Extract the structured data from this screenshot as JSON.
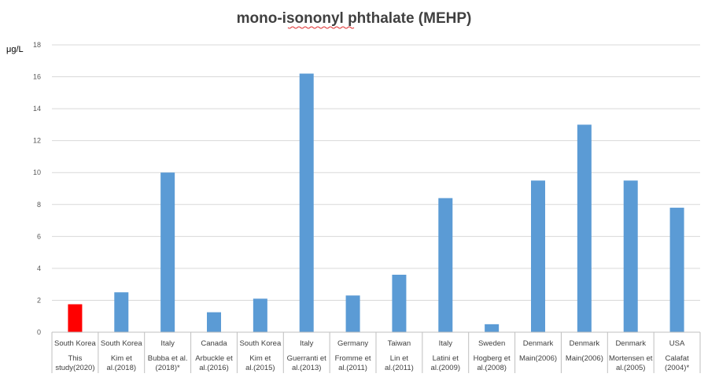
{
  "chart_data": {
    "type": "bar",
    "title": "mono-isononyl phthalate (MEHP)",
    "ylabel": "μg/L",
    "xlabel": "",
    "ylim": [
      0,
      18
    ],
    "yticks": [
      0,
      2,
      4,
      6,
      8,
      10,
      12,
      14,
      16,
      18
    ],
    "grid": true,
    "legend": "none",
    "categories": [
      {
        "country": "South Korea",
        "study": [
          "This",
          "study(2020)"
        ]
      },
      {
        "country": "South Korea",
        "study": [
          "Kim et",
          "al.(2018)"
        ]
      },
      {
        "country": "Italy",
        "study": [
          "Bubba et al.",
          "(2018)*"
        ]
      },
      {
        "country": "Canada",
        "study": [
          "Arbuckle et",
          "al.(2016)"
        ]
      },
      {
        "country": "South Korea",
        "study": [
          "Kim et",
          "al.(2015)"
        ]
      },
      {
        "country": "Italy",
        "study": [
          "Guerranti et",
          "al.(2013)"
        ]
      },
      {
        "country": "Germany",
        "study": [
          "Fromme et",
          "al.(2011)"
        ]
      },
      {
        "country": "Taiwan",
        "study": [
          "Lin et",
          "al.(2011)"
        ]
      },
      {
        "country": "Italy",
        "study": [
          "Latini et",
          "al.(2009)"
        ]
      },
      {
        "country": "Sweden",
        "study": [
          "Hogberg et",
          "al.(2008)"
        ]
      },
      {
        "country": "Denmark",
        "study": [
          "Main(2006)"
        ]
      },
      {
        "country": "Denmark",
        "study": [
          "Main(2006)"
        ]
      },
      {
        "country": "Denmark",
        "study": [
          "Mortensen et",
          "al.(2005)"
        ]
      },
      {
        "country": "USA",
        "study": [
          "Calafat",
          "(2004)*"
        ]
      }
    ],
    "values": [
      1.75,
      2.5,
      10.0,
      1.25,
      2.1,
      16.2,
      2.3,
      3.6,
      8.4,
      0.5,
      9.5,
      13.0,
      9.5,
      7.8
    ],
    "colors": {
      "highlight": "#ff0000",
      "default": "#5b9bd5"
    },
    "highlight_index": 0
  }
}
